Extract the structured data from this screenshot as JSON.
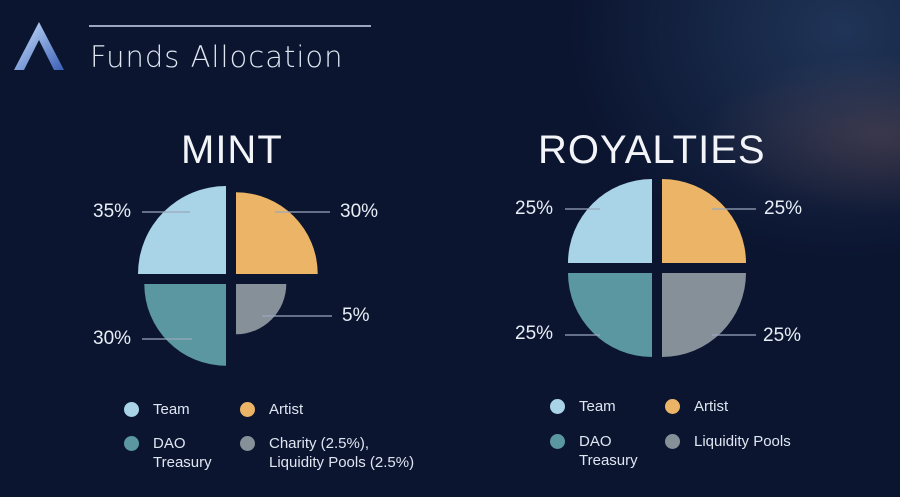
{
  "header": {
    "title": "Funds Allocation"
  },
  "colors": {
    "team": "#a9d3e6",
    "artist": "#ebb466",
    "dao": "#5b97a1",
    "other": "#869099",
    "background": "#0b1530"
  },
  "chart_data": [
    {
      "type": "pie",
      "title": "MINT",
      "categories": [
        "Team",
        "Artist",
        "DAO Treasury",
        "Charity (2.5%), Liquidity Pools (2.5%)"
      ],
      "values": [
        35,
        30,
        30,
        5
      ],
      "labels": [
        "35%",
        "30%",
        "30%",
        "5%"
      ],
      "legend": [
        "Team",
        "Artist",
        "DAO Treasury",
        "Charity (2.5%), Liquidity Pools (2.5%)"
      ],
      "legend_placement": "bottom"
    },
    {
      "type": "pie",
      "title": "ROYALTIES",
      "categories": [
        "Team",
        "Artist",
        "DAO Treasury",
        "Liquidity Pools"
      ],
      "values": [
        25,
        25,
        25,
        25
      ],
      "labels": [
        "25%",
        "25%",
        "25%",
        "25%"
      ],
      "legend": [
        "Team",
        "Artist",
        "DAO Treasury",
        "Liquidity Pools"
      ],
      "legend_placement": "bottom"
    }
  ],
  "legend_lines": {
    "mint_dao": [
      "DAO",
      "Treasury"
    ],
    "mint_other": [
      "Charity (2.5%),",
      "Liquidity Pools (2.5%)"
    ],
    "roy_dao": [
      "DAO",
      "Treasury"
    ]
  }
}
